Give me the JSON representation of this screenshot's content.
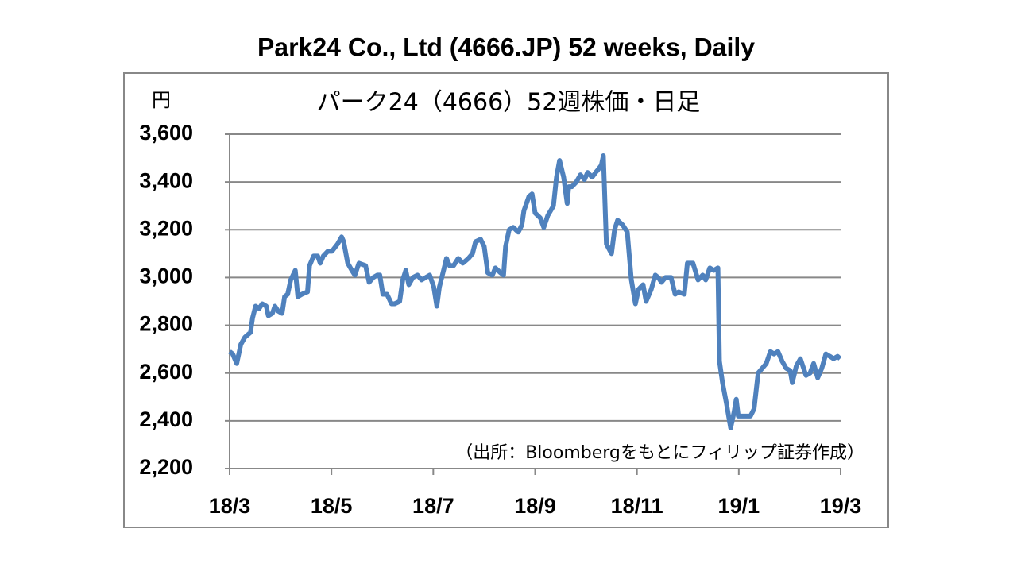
{
  "chart_data": {
    "type": "line",
    "title": "Park24 Co., Ltd (4666.JP) 52 weeks, Daily",
    "subtitle": "パーク24（4666）52週株価・日足",
    "y_label": "円",
    "source": "（出所：Bloombergをもとにフィリップ証券作成）",
    "xlim": [
      0,
      12
    ],
    "xticks": [
      {
        "value": 0,
        "label": "18/3"
      },
      {
        "value": 2,
        "label": "18/5"
      },
      {
        "value": 4,
        "label": "18/7"
      },
      {
        "value": 6,
        "label": "18/9"
      },
      {
        "value": 8,
        "label": "18/11"
      },
      {
        "value": 10,
        "label": "19/1"
      },
      {
        "value": 12,
        "label": "19/3"
      }
    ],
    "ylim": [
      2200,
      3600
    ],
    "yticks": [
      {
        "value": 2200,
        "label": "2,200"
      },
      {
        "value": 2400,
        "label": "2,400"
      },
      {
        "value": 2600,
        "label": "2,600"
      },
      {
        "value": 2800,
        "label": "2,800"
      },
      {
        "value": 3000,
        "label": "3,000"
      },
      {
        "value": 3200,
        "label": "3,200"
      },
      {
        "value": 3400,
        "label": "3,400"
      },
      {
        "value": 3600,
        "label": "3,600"
      }
    ],
    "grid": true,
    "series": [
      {
        "color": "#4f81bd",
        "x": [
          0,
          0.06,
          0.14,
          0.22,
          0.3,
          0.41,
          0.45,
          0.51,
          0.58,
          0.64,
          0.72,
          0.76,
          0.84,
          0.89,
          0.95,
          1.03,
          1.08,
          1.14,
          1.2,
          1.29,
          1.34,
          1.42,
          1.53,
          1.57,
          1.65,
          1.73,
          1.78,
          1.84,
          1.93,
          2.01,
          2.12,
          2.2,
          2.24,
          2.32,
          2.4,
          2.46,
          2.54,
          2.67,
          2.74,
          2.82,
          2.9,
          2.95,
          3.01,
          3.09,
          3.18,
          3.24,
          3.34,
          3.4,
          3.46,
          3.52,
          3.6,
          3.69,
          3.77,
          3.85,
          3.93,
          4.01,
          4.07,
          4.12,
          4.19,
          4.26,
          4.32,
          4.4,
          4.49,
          4.58,
          4.69,
          4.77,
          4.83,
          4.93,
          5.0,
          5.07,
          5.16,
          5.22,
          5.32,
          5.38,
          5.42,
          5.49,
          5.57,
          5.67,
          5.74,
          5.78,
          5.88,
          5.94,
          6.0,
          6.1,
          6.17,
          6.25,
          6.36,
          6.42,
          6.48,
          6.56,
          6.63,
          6.66,
          6.72,
          6.81,
          6.89,
          6.97,
          7.03,
          7.12,
          7.19,
          7.23,
          7.3,
          7.34,
          7.4,
          7.5,
          7.56,
          7.62,
          7.72,
          7.81,
          7.89,
          7.97,
          8.03,
          8.12,
          8.18,
          8.28,
          8.36,
          8.42,
          8.48,
          8.56,
          8.67,
          8.75,
          8.82,
          8.93,
          8.99,
          9.1,
          9.2,
          9.29,
          9.35,
          9.43,
          9.51,
          9.59,
          9.62,
          9.68,
          9.76,
          9.84,
          9.91,
          9.95,
          9.99,
          10.15,
          10.23,
          10.3,
          10.38,
          10.46,
          10.54,
          10.62,
          10.69,
          10.77,
          10.85,
          10.93,
          11.01,
          11.05,
          11.13,
          11.21,
          11.32,
          11.4,
          11.47,
          11.55,
          11.63,
          11.71,
          11.79,
          11.86,
          11.94,
          11.99
        ],
        "values": [
          2690,
          2680,
          2640,
          2720,
          2750,
          2770,
          2830,
          2880,
          2870,
          2890,
          2880,
          2840,
          2850,
          2880,
          2860,
          2850,
          2920,
          2930,
          2990,
          3030,
          2920,
          2930,
          2940,
          3050,
          3090,
          3090,
          3060,
          3090,
          3110,
          3110,
          3140,
          3170,
          3150,
          3060,
          3030,
          3010,
          3060,
          3050,
          2980,
          3000,
          3010,
          3010,
          2930,
          2930,
          2890,
          2890,
          2900,
          2990,
          3030,
          2970,
          3000,
          3010,
          2990,
          3000,
          3010,
          2960,
          2880,
          2960,
          3020,
          3080,
          3050,
          3050,
          3080,
          3060,
          3080,
          3100,
          3150,
          3160,
          3130,
          3020,
          3010,
          3040,
          3020,
          3010,
          3130,
          3200,
          3210,
          3190,
          3220,
          3280,
          3340,
          3350,
          3270,
          3250,
          3210,
          3260,
          3300,
          3420,
          3490,
          3420,
          3310,
          3380,
          3380,
          3400,
          3430,
          3410,
          3440,
          3420,
          3440,
          3450,
          3470,
          3510,
          3140,
          3100,
          3200,
          3240,
          3220,
          3190,
          2990,
          2890,
          2950,
          2970,
          2900,
          2950,
          3010,
          3000,
          2980,
          3000,
          3000,
          2930,
          2940,
          2930,
          3060,
          3060,
          2990,
          3010,
          2990,
          3040,
          3030,
          3040,
          2650,
          2560,
          2470,
          2370,
          2440,
          2490,
          2420,
          2420,
          2420,
          2450,
          2600,
          2620,
          2640,
          2690,
          2680,
          2690,
          2650,
          2620,
          2610,
          2560,
          2630,
          2660,
          2590,
          2600,
          2640,
          2580,
          2620,
          2680,
          2670,
          2660,
          2670,
          2660
        ]
      }
    ]
  }
}
